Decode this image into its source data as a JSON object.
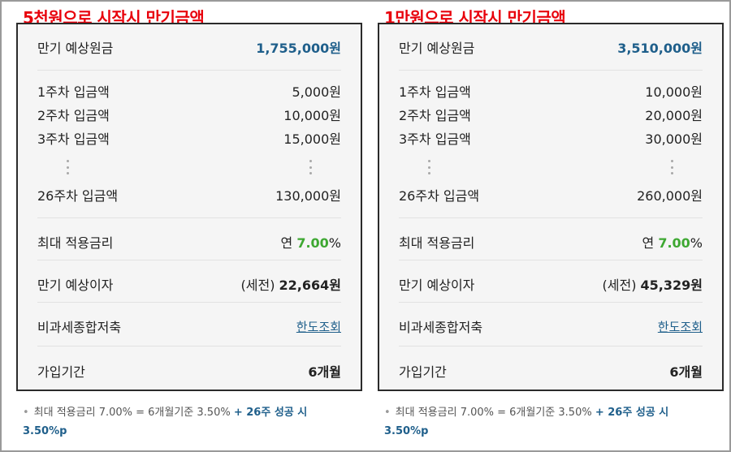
{
  "panels": [
    {
      "title": "5천원으로 시작시 만기금액",
      "principal": {
        "label": "만기 예상원금",
        "value": "1,755,000원"
      },
      "weeks": [
        {
          "label": "1주차 입금액",
          "value": "5,000원"
        },
        {
          "label": "2주차 입금액",
          "value": "10,000원"
        },
        {
          "label": "3주차 입금액",
          "value": "15,000원"
        }
      ],
      "last_week": {
        "label": "26주차 입금액",
        "value": "130,000원"
      },
      "max_rate": {
        "label": "최대 적용금리",
        "prefix": "연 ",
        "rate": "7.00",
        "suffix": "%"
      },
      "interest": {
        "label": "만기 예상이자",
        "prefix": "(세전) ",
        "value": "22,664원"
      },
      "tax_free": {
        "label": "비과세종합저축",
        "link": "한도조회"
      },
      "period": {
        "label": "가입기간",
        "value": "6개월"
      },
      "footnote": {
        "bullet": "•",
        "text": "최대 적용금리 7.00% = 6개월기준 3.50% ",
        "highlight_1": "+ 26주 성공 시",
        "highlight_2": "3.50%p"
      }
    },
    {
      "title": "1만원으로 시작시 만기금액",
      "principal": {
        "label": "만기 예상원금",
        "value": "3,510,000원"
      },
      "weeks": [
        {
          "label": "1주차 입금액",
          "value": "10,000원"
        },
        {
          "label": "2주차 입금액",
          "value": "20,000원"
        },
        {
          "label": "3주차 입금액",
          "value": "30,000원"
        }
      ],
      "last_week": {
        "label": "26주차 입금액",
        "value": "260,000원"
      },
      "max_rate": {
        "label": "최대 적용금리",
        "prefix": "연 ",
        "rate": "7.00",
        "suffix": "%"
      },
      "interest": {
        "label": "만기 예상이자",
        "prefix": "(세전) ",
        "value": "45,329원"
      },
      "tax_free": {
        "label": "비과세종합저축",
        "link": "한도조회"
      },
      "period": {
        "label": "가입기간",
        "value": "6개월"
      },
      "footnote": {
        "bullet": "•",
        "text": "최대 적용금리 7.00% = 6개월기준 3.50% ",
        "highlight_1": "+ 26주 성공 시",
        "highlight_2": "3.50%p"
      }
    }
  ],
  "colors": {
    "title": "#e8000b",
    "primary": "#1f5f8b",
    "rate": "#3ea832"
  }
}
